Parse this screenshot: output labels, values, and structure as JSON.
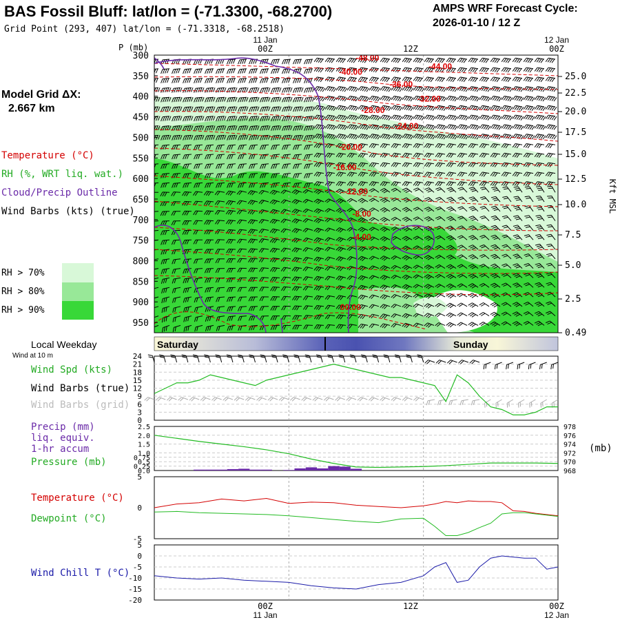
{
  "header": {
    "title": "BAS Fossil Bluff:  lat/lon = (-71.3300, -68.2700)",
    "subtitle": "Grid Point (293, 407) lat/lon = (-71.3318, -68.2518)",
    "cycle_label": "AMPS WRF Forecast Cycle:",
    "cycle_value": "2026-01-10 / 12  Z"
  },
  "left_panel": {
    "grid_label": "Model Grid ΔX:",
    "grid_value": "2.667 km",
    "legend_temperature": "Temperature (°C)",
    "legend_rh": "RH (%, WRT liq. wat.)",
    "legend_cloud": "Cloud/Precip Outline",
    "legend_wind": "Wind Barbs (kts) (true)",
    "rh_70": "RH > 70%",
    "rh_80": "RH > 80%",
    "rh_90": "RH > 90%"
  },
  "time_axis": {
    "top_dates": [
      "11 Jan",
      "12 Jan"
    ],
    "top_ticks": [
      "00Z",
      "12Z",
      "00Z"
    ],
    "bottom_ticks": [
      "00Z",
      "12Z",
      "00Z"
    ],
    "bottom_dates": [
      "11 Jan",
      "12 Jan"
    ]
  },
  "weekday": {
    "label": "Local Weekday",
    "day1": "Saturday",
    "day2": "Sunday",
    "wind10m": "Wind at 10 m"
  },
  "colors": {
    "temperature": "#d40000",
    "rh70": "#d8f8d8",
    "rh80": "#98e898",
    "rh90": "#38d838",
    "cloud": "#6a2aa8",
    "wind_spd": "#22bb22",
    "dewpoint": "#22bb22",
    "windchill": "#1a1aa8",
    "precip": "#6a2aa8"
  },
  "chart_data": [
    {
      "type": "heatmap",
      "xlabel": "",
      "ylabel": "P (mb)",
      "y2label": "Kft MSL",
      "ylim": [
        975,
        300
      ],
      "pressure_ticks": [
        "300",
        "350",
        "400",
        "450",
        "500",
        "550",
        "600",
        "650",
        "700",
        "750",
        "800",
        "850",
        "900",
        "950"
      ],
      "height_ticks": [
        "25.0",
        "22.5",
        "20.0",
        "17.5",
        "15.0",
        "12.5",
        "10.0",
        "7.5",
        "5.0",
        "2.5",
        "0.49"
      ],
      "temperature_labels": [
        {
          "t": 7,
          "p": 313,
          "label": "-48.00"
        },
        {
          "t": 13.5,
          "p": 334,
          "label": "-44.00"
        },
        {
          "t": 5.5,
          "p": 348,
          "label": "-40.00"
        },
        {
          "t": 10,
          "p": 378,
          "label": "-36.00"
        },
        {
          "t": 12.5,
          "p": 413,
          "label": "-32.00"
        },
        {
          "t": 7.5,
          "p": 441,
          "label": "-28.00"
        },
        {
          "t": 10.5,
          "p": 479,
          "label": "-24.00"
        },
        {
          "t": 5.5,
          "p": 530,
          "label": "-20.00"
        },
        {
          "t": 5,
          "p": 580,
          "label": "-16.00"
        },
        {
          "t": 6,
          "p": 638,
          "label": "-12.00"
        },
        {
          "t": 6.5,
          "p": 693,
          "label": "-8.00"
        },
        {
          "t": 6.5,
          "p": 749,
          "label": "-4.00"
        },
        {
          "t": 5.5,
          "p": 920,
          "label": "00.00"
        }
      ]
    },
    {
      "type": "line",
      "title": "",
      "ylabel": "Wind Spd (kts)",
      "label_barbs_true": "Wind Barbs (true)",
      "label_barbs_grid": "Wind Barbs (grid)",
      "ylim": [
        0,
        24
      ],
      "yticks": [
        "0",
        "3",
        "6",
        "9",
        "12",
        "15",
        "18",
        "21",
        "24"
      ],
      "x": [
        -12,
        -11,
        -10,
        -9,
        -8,
        -7,
        -6,
        -5,
        -4,
        -3,
        -2,
        -1,
        0,
        1,
        2,
        3,
        4,
        5,
        6,
        7,
        8,
        9,
        10,
        11,
        12,
        13,
        14,
        15,
        16,
        17,
        18,
        19,
        20,
        21,
        22,
        23,
        24
      ],
      "values": [
        10,
        12,
        14,
        14,
        15,
        17,
        16,
        15,
        14,
        13,
        15,
        16,
        17,
        18,
        19,
        20,
        21,
        20,
        19,
        18,
        17,
        16,
        16,
        15,
        14,
        13,
        7,
        17,
        14,
        9,
        5,
        4,
        2,
        2,
        3,
        5,
        5
      ]
    },
    {
      "type": "bar",
      "ylabel": "Precip (mm)",
      "ylabel2": "liq. equiv.",
      "ylabel3": "1-hr accum",
      "ylabel4": "Pressure (mb)",
      "y2unit": "(mb)",
      "ylim": [
        0,
        2.5
      ],
      "yticks": [
        "0.0",
        "0.25",
        "0.5",
        "0.75",
        "1.0",
        "1.5",
        "2.0",
        "2.5"
      ],
      "y2lim": [
        968,
        978
      ],
      "y2ticks": [
        "968",
        "970",
        "972",
        "974",
        "976",
        "978"
      ],
      "precip_x": [
        -8,
        -7,
        -6,
        -5,
        -4,
        -3,
        -2,
        0,
        1,
        2,
        3,
        4,
        5,
        6
      ],
      "precip_values": [
        0.05,
        0.05,
        0.05,
        0.08,
        0.1,
        0.05,
        0.05,
        0.03,
        0.12,
        0.18,
        0.12,
        0.25,
        0.22,
        0.1
      ],
      "pressure_x": [
        -12,
        -10,
        -8,
        -6,
        -4,
        -2,
        0,
        2,
        4,
        6,
        8,
        10,
        12,
        14,
        16,
        18,
        20,
        22,
        24
      ],
      "pressure_values": [
        976,
        975.3,
        974.6,
        974,
        973.4,
        972.7,
        971.8,
        970.6,
        969.6,
        968.8,
        968.7,
        968.8,
        968.9,
        969.1,
        969.4,
        969.7,
        969.7,
        969.7,
        969.6
      ]
    },
    {
      "type": "line",
      "ylabel": "Temperature (°C)",
      "ylabel2": "Dewpoint (°C)",
      "ylim": [
        -5,
        5
      ],
      "yticks": [
        "-5",
        "0",
        "5"
      ],
      "x": [
        -12,
        -10,
        -8,
        -6,
        -4,
        -2,
        0,
        2,
        4,
        6,
        8,
        10,
        12,
        13,
        14,
        15,
        16,
        17,
        18,
        19,
        20,
        21,
        22,
        24
      ],
      "series": [
        {
          "name": "Temperature",
          "values": [
            0,
            0.6,
            0.8,
            1.4,
            1.1,
            1.5,
            0.7,
            0.9,
            0.8,
            0.4,
            0.2,
            0,
            0.3,
            0.6,
            1.0,
            0.8,
            1.1,
            1.0,
            1.0,
            0.8,
            -0.5,
            -0.6,
            -0.9,
            -1.3
          ]
        },
        {
          "name": "Dewpoint",
          "values": [
            -0.7,
            -0.6,
            -0.8,
            -0.9,
            -1.0,
            -1.1,
            -1.3,
            -1.6,
            -1.9,
            -2.2,
            -2.4,
            -1.8,
            -1.7,
            -3.0,
            -4.5,
            -4.5,
            -4.0,
            -3.2,
            -2.5,
            -1.0,
            -0.8,
            -0.8,
            -1.0,
            -1.4
          ]
        }
      ]
    },
    {
      "type": "line",
      "ylabel": "Wind Chill T (°C)",
      "ylim": [
        -20,
        5
      ],
      "yticks": [
        "-20",
        "-15",
        "-10",
        "-5",
        "0",
        "5"
      ],
      "x": [
        -12,
        -10,
        -8,
        -6,
        -4,
        -2,
        0,
        2,
        4,
        6,
        8,
        10,
        12,
        13,
        14,
        15,
        16,
        17,
        18,
        19,
        20,
        21,
        22,
        23,
        24
      ],
      "values": [
        -9,
        -10,
        -10.5,
        -10,
        -11,
        -11.5,
        -12,
        -13.5,
        -14.5,
        -15,
        -13,
        -12,
        -9,
        -5,
        -3,
        -12,
        -11,
        -5,
        -1,
        0,
        -0.5,
        -1,
        -1,
        -6,
        -5
      ]
    }
  ]
}
